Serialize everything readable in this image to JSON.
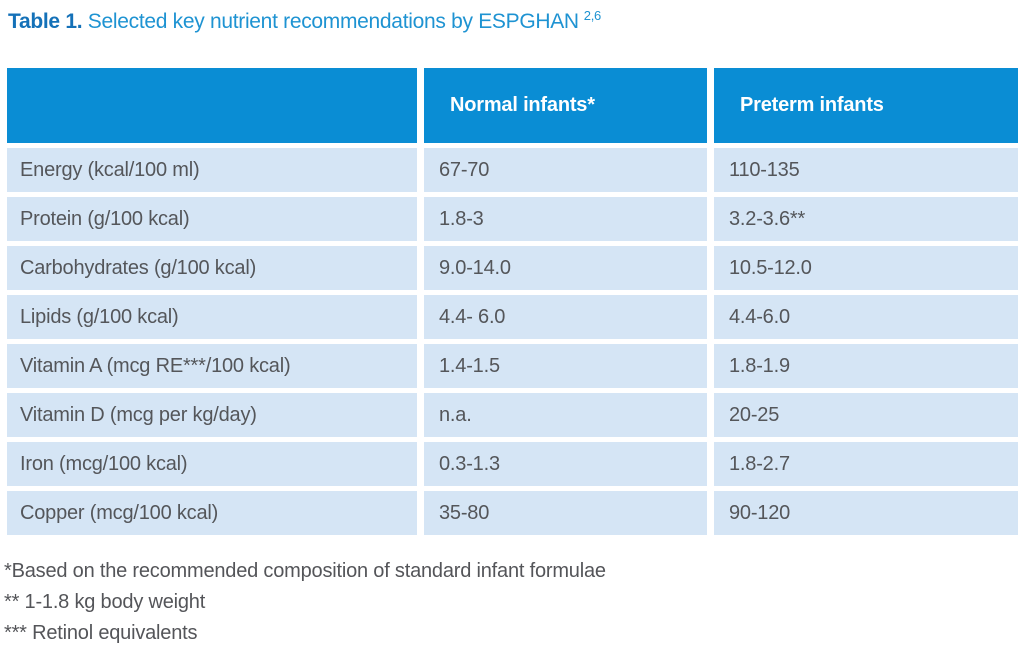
{
  "title": {
    "bold": "Table 1.",
    "rest": " Selected key nutrient recommendations by ESPGHAN",
    "superscript": "2,6"
  },
  "table": {
    "columns": [
      "",
      "Normal infants*",
      "Preterm infants"
    ],
    "rows": [
      {
        "label": "Energy (kcal/100 ml)",
        "normal": "67-70",
        "preterm": "110-135"
      },
      {
        "label": "Protein (g/100 kcal)",
        "normal": "1.8-3",
        "preterm": "3.2-3.6**"
      },
      {
        "label": "Carbohydrates (g/100 kcal)",
        "normal": "9.0-14.0",
        "preterm": "10.5-12.0"
      },
      {
        "label": "Lipids (g/100 kcal)",
        "normal": "4.4- 6.0",
        "preterm": "4.4-6.0"
      },
      {
        "label": "Vitamin A (mcg RE***/100 kcal)",
        "normal": "1.4-1.5",
        "preterm": "1.8-1.9"
      },
      {
        "label": "Vitamin D (mcg per kg/day)",
        "normal": "n.a.",
        "preterm": "20-25"
      },
      {
        "label": "Iron (mcg/100 kcal)",
        "normal": "0.3-1.3",
        "preterm": "1.8-2.7"
      },
      {
        "label": "Copper (mcg/100 kcal)",
        "normal": "35-80",
        "preterm": "90-120"
      }
    ]
  },
  "footnotes": [
    "*Based on the recommended composition of standard infant formulae",
    "** 1-1.8 kg body weight",
    "*** Retinol equivalents"
  ],
  "colors": {
    "header_blue": "#0a8dd4",
    "row_blue": "#d5e5f5",
    "cell_text": "#54565a",
    "title_bold_blue": "#1471b8",
    "title_blue": "#1e93d2",
    "footnote_text": "#545559",
    "page_bg": "#ffffff"
  }
}
